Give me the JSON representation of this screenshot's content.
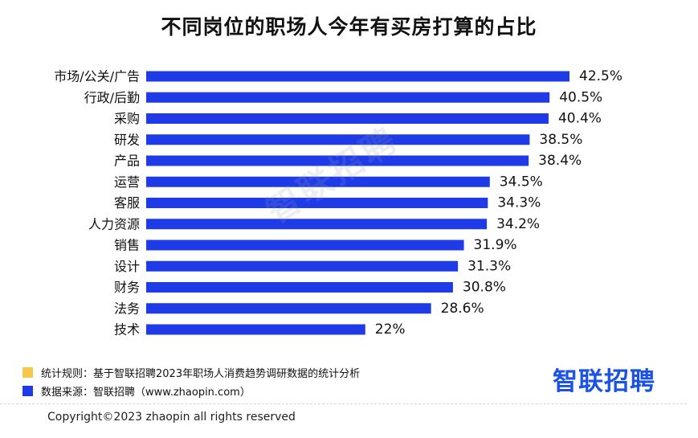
{
  "title": "不同岗位的职场人今年有买房打算的占比",
  "watermark": "智联招聘",
  "chart_data": {
    "type": "bar",
    "orientation": "horizontal",
    "title": "不同岗位的职场人今年有买房打算的占比",
    "categories": [
      "市场/公关/广告",
      "行政/后勤",
      "采购",
      "研发",
      "产品",
      "运营",
      "客服",
      "人力资源",
      "销售",
      "设计",
      "财务",
      "法务",
      "技术"
    ],
    "values": [
      42.5,
      40.5,
      40.4,
      38.5,
      38.4,
      34.5,
      34.3,
      34.2,
      31.9,
      31.3,
      30.8,
      28.6,
      22
    ],
    "value_labels": [
      "42.5%",
      "40.5%",
      "40.4%",
      "38.5%",
      "38.4%",
      "34.5%",
      "34.3%",
      "34.2%",
      "31.9%",
      "31.3%",
      "30.8%",
      "28.6%",
      "22%"
    ],
    "unit": "%",
    "xlim": [
      0,
      42.5
    ],
    "grid": false,
    "axes_visible": false,
    "bar_color": "#1f3be8"
  },
  "legend": {
    "items": [
      {
        "color": "#f5c84a",
        "text": "统计规则：基于智联招聘2023年职场人消费趋势调研数据的统计分析"
      },
      {
        "color": "#1f3be8",
        "text": "数据来源：智联招聘（www.zhaopin.com）"
      }
    ]
  },
  "brand": "智联招聘",
  "brand_color": "#1b52e6",
  "copyright": "Copyright©2023 zhaopin all rights reserved"
}
